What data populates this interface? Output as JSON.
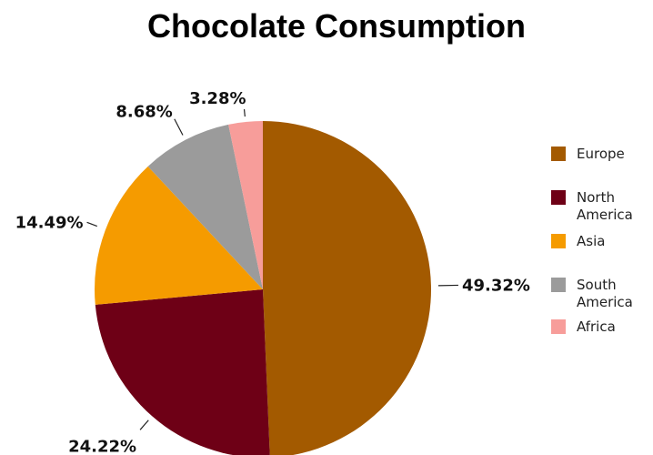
{
  "chart_data": {
    "type": "pie",
    "title": "Chocolate Consumption",
    "categories": [
      "Europe",
      "North America",
      "Asia",
      "South America",
      "Africa"
    ],
    "values": [
      49.32,
      24.22,
      14.49,
      8.68,
      3.28
    ],
    "labels": [
      "49.32%",
      "24.22%",
      "14.49%",
      "8.68%",
      "3.28%"
    ],
    "colors": [
      "#A35A00",
      "#6E0016",
      "#F59B00",
      "#9B9B9B",
      "#F79D9A"
    ],
    "legend_labels": [
      "Europe",
      "North\nAmerica",
      "Asia",
      "South\nAmerica",
      "Africa"
    ],
    "legend_position": "right"
  }
}
